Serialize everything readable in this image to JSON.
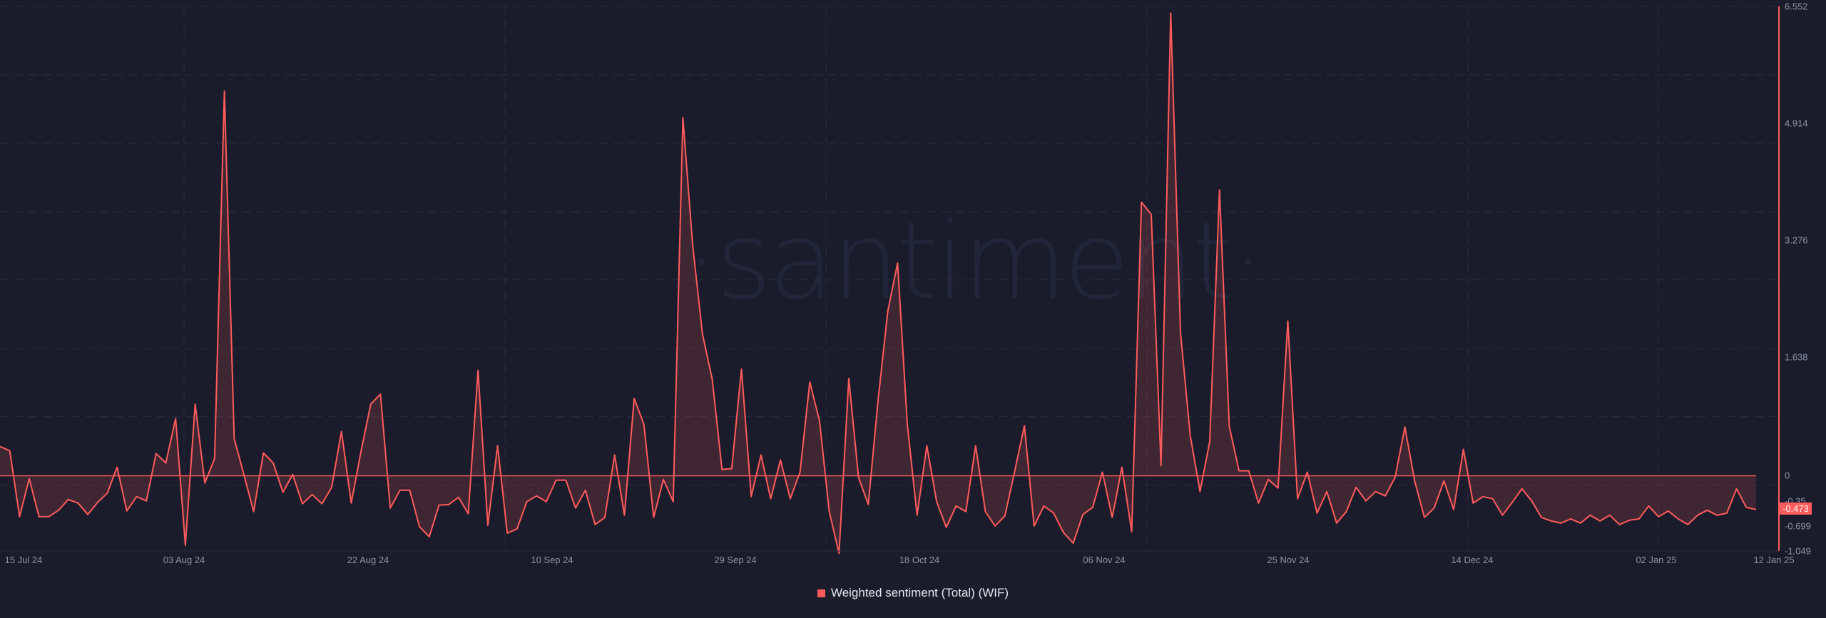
{
  "watermark": "·santiment·",
  "legend": {
    "label": "Weighted sentiment (Total) (WIF)",
    "color": "#ff5b5b"
  },
  "y_axis": {
    "ticks": [
      "6.552",
      "4.914",
      "3.276",
      "1.638",
      "0",
      "-0.35",
      "-0.699",
      "-1.049"
    ],
    "current_value": "-0.473"
  },
  "x_axis": {
    "ticks": [
      "15 Jul 24",
      "03 Aug 24",
      "22 Aug 24",
      "10 Sep 24",
      "29 Sep 24",
      "18 Oct 24",
      "06 Nov 24",
      "25 Nov 24",
      "14 Dec 24",
      "02 Jan 25",
      "12 Jan 25"
    ]
  },
  "colors": {
    "background": "#1b1c2b",
    "line": "#ff5b5b",
    "fill": "rgba(255,91,91,0.16)",
    "grid": "#2a2d42",
    "axis_text": "#8b93a7"
  },
  "chart_data": {
    "type": "area",
    "title": "",
    "xlabel": "",
    "ylabel": "",
    "ylim": [
      -1.049,
      6.552
    ],
    "grid": true,
    "legend_position": "bottom-center",
    "series": [
      {
        "name": "Weighted sentiment (Total) (WIF)",
        "color": "#ff5b5b",
        "start_date": "2024-07-12",
        "frequency": "daily",
        "values": [
          0.41,
          0.35,
          -0.57,
          -0.04,
          -0.57,
          -0.57,
          -0.48,
          -0.33,
          -0.38,
          -0.54,
          -0.37,
          -0.24,
          0.12,
          -0.49,
          -0.29,
          -0.35,
          0.31,
          0.18,
          0.8,
          -0.97,
          1.0,
          -0.1,
          0.24,
          5.37,
          0.52,
          0.02,
          -0.5,
          0.32,
          0.18,
          -0.23,
          0.02,
          -0.39,
          -0.26,
          -0.39,
          -0.16,
          0.62,
          -0.38,
          0.34,
          1.0,
          1.14,
          -0.45,
          -0.2,
          -0.2,
          -0.71,
          -0.85,
          -0.41,
          -0.4,
          -0.3,
          -0.53,
          1.47,
          -0.69,
          0.42,
          -0.8,
          -0.74,
          -0.36,
          -0.28,
          -0.36,
          -0.06,
          -0.06,
          -0.45,
          -0.2,
          -0.68,
          -0.58,
          0.29,
          -0.55,
          1.08,
          0.72,
          -0.58,
          -0.05,
          -0.36,
          5.0,
          3.22,
          1.98,
          1.35,
          0.09,
          0.1,
          1.49,
          -0.29,
          0.29,
          -0.32,
          0.22,
          -0.32,
          0.05,
          1.31,
          0.77,
          -0.5,
          -1.08,
          1.36,
          -0.02,
          -0.4,
          1.05,
          2.3,
          2.97,
          0.72,
          -0.55,
          0.42,
          -0.36,
          -0.72,
          -0.42,
          -0.5,
          0.42,
          -0.5,
          -0.7,
          -0.56,
          0.06,
          0.7,
          -0.7,
          -0.42,
          -0.52,
          -0.79,
          -0.94,
          -0.54,
          -0.44,
          0.05,
          -0.58,
          0.12,
          -0.78,
          3.82,
          3.65,
          0.14,
          6.46,
          2.0,
          0.56,
          -0.22,
          0.48,
          3.99,
          0.69,
          0.07,
          0.07,
          -0.38,
          -0.05,
          -0.17,
          2.16,
          -0.32,
          0.05,
          -0.52,
          -0.22,
          -0.66,
          -0.5,
          -0.16,
          -0.35,
          -0.22,
          -0.28,
          -0.02,
          0.68,
          -0.07,
          -0.58,
          -0.45,
          -0.07,
          -0.47,
          0.37,
          -0.38,
          -0.29,
          -0.32,
          -0.55,
          -0.37,
          -0.18,
          -0.35,
          -0.58,
          -0.63,
          -0.66,
          -0.6,
          -0.66,
          -0.55,
          -0.63,
          -0.55,
          -0.68,
          -0.62,
          -0.6,
          -0.42,
          -0.57,
          -0.49,
          -0.6,
          -0.68,
          -0.55,
          -0.48,
          -0.55,
          -0.52,
          -0.18,
          -0.44,
          -0.47
        ]
      }
    ],
    "baseline": 0,
    "last_value": -0.473
  }
}
